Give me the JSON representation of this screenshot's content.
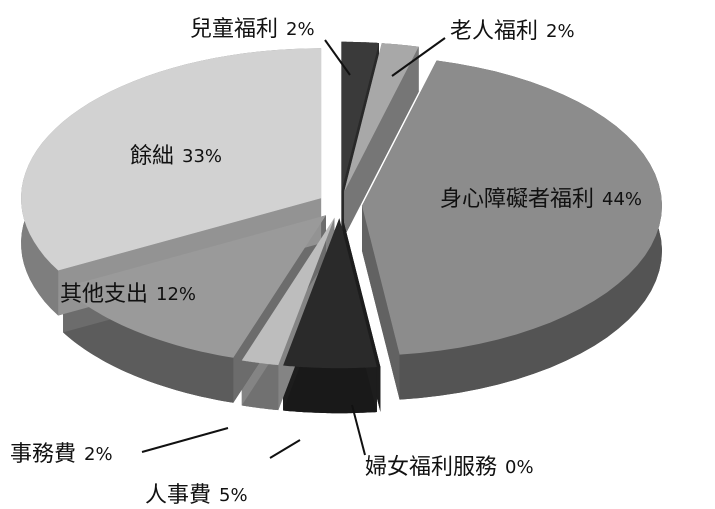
{
  "chart_data": {
    "type": "pie",
    "categories": [
      "兒童福利",
      "老人福利",
      "身心障礙者福利",
      "婦女福利服務",
      "人事費",
      "事務費",
      "其他支出",
      "餘絀"
    ],
    "values": [
      2,
      2,
      44,
      0,
      5,
      2,
      12,
      33
    ],
    "value_labels": [
      "2%",
      "2%",
      "44%",
      "0%",
      "5%",
      "2%",
      "12%",
      "33%"
    ],
    "colors": [
      "#3a3a3a",
      "#a8a8a8",
      "#8c8c8c",
      "#2a2a2a",
      "#2a2a2a",
      "#bdbdbd",
      "#9a9a9a",
      "#d2d2d2"
    ]
  }
}
